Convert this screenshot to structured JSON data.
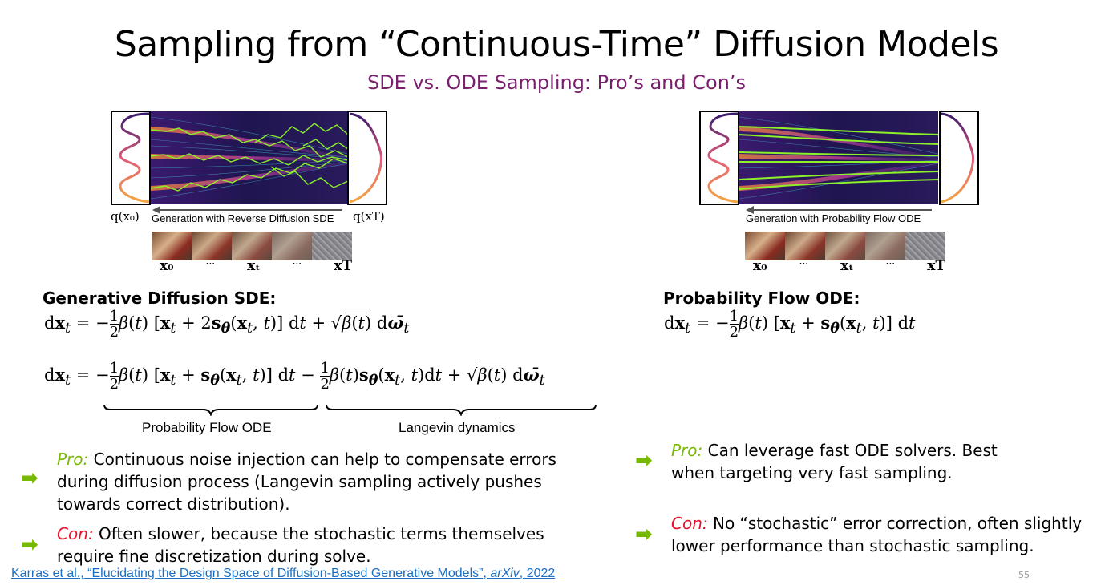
{
  "slide": {
    "title": "Sampling from “Continuous-Time” Diffusion Models",
    "subtitle": "SDE vs. ODE Sampling: Pro’s and Con’s",
    "page_number": "55"
  },
  "left_figure": {
    "label_q0": "q(x₀)",
    "caption": "Generation with Reverse Diffusion SDE",
    "label_qT": "q(xT)",
    "strip_labels": [
      "x₀",
      "···",
      "xₜ",
      "···",
      "xT"
    ]
  },
  "right_figure": {
    "caption": "Generation with Probability Flow ODE",
    "strip_labels": [
      "x₀",
      "···",
      "xₜ",
      "···",
      "xT"
    ]
  },
  "left": {
    "heading": "Generative Diffusion SDE:",
    "brace_left_label": "Probability Flow ODE",
    "brace_right_label": "Langevin dynamics",
    "pro_label": "Pro:",
    "pro_text": " Continuous noise injection can help to compensate errors during diffusion process (Langevin sampling actively pushes towards correct distribution).",
    "con_label": "Con:",
    "con_text": " Often slower, because the stochastic terms themselves require fine discretization during solve."
  },
  "right": {
    "heading": "Probability Flow ODE:",
    "pro_label": "Pro:",
    "pro_text": " Can leverage fast ODE solvers. Best when targeting very fast sampling.",
    "con_label": "Con:",
    "con_text": " No “stochastic” error correction, often slightly lower performance than stochastic sampling."
  },
  "citation": {
    "text_before": "Karras et al., “Elucidating the Design Space of Diffusion-Based Generative Models”, ",
    "venue": "arXiv",
    "text_after": ", 2022"
  },
  "colors": {
    "subtitle": "#7a1f6e",
    "pro": "#76b900",
    "con": "#e8112d",
    "arrow": "#76b900",
    "link": "#1a6fc4"
  },
  "icons": {
    "bullet_arrow": "right-arrow-icon"
  }
}
